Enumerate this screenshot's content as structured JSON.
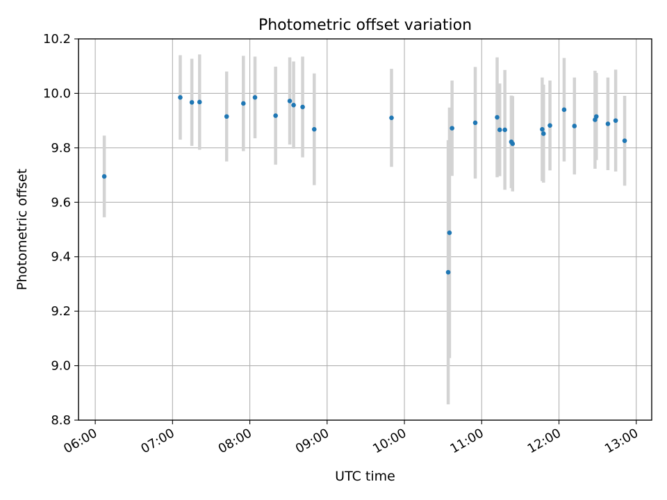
{
  "chart_data": {
    "type": "scatter",
    "title": "Photometric offset variation",
    "xlabel": "UTC time",
    "ylabel": "Photometric offset",
    "x_ticks": [
      "06:00",
      "07:00",
      "08:00",
      "09:00",
      "10:00",
      "11:00",
      "12:00",
      "13:00"
    ],
    "y_ticks": [
      "8.8",
      "9.0",
      "9.2",
      "9.4",
      "9.6",
      "9.8",
      "10.0",
      "10.2"
    ],
    "xlim": [
      "05:47",
      "13:12"
    ],
    "ylim": [
      8.8,
      10.2
    ],
    "grid": true,
    "marker_color": "#1f77b4",
    "errorbar_color": "#d3d3d3",
    "series": [
      {
        "points": [
          {
            "x": "06:07",
            "y": 9.695,
            "yerr": 0.15
          },
          {
            "x": "07:06",
            "y": 9.985,
            "yerr": 0.155
          },
          {
            "x": "07:15",
            "y": 9.967,
            "yerr": 0.16
          },
          {
            "x": "07:21",
            "y": 9.968,
            "yerr": 0.175
          },
          {
            "x": "07:42",
            "y": 9.915,
            "yerr": 0.165
          },
          {
            "x": "07:55",
            "y": 9.963,
            "yerr": 0.175
          },
          {
            "x": "08:04",
            "y": 9.985,
            "yerr": 0.15
          },
          {
            "x": "08:20",
            "y": 9.918,
            "yerr": 0.18
          },
          {
            "x": "08:31",
            "y": 9.972,
            "yerr": 0.16
          },
          {
            "x": "08:34",
            "y": 9.957,
            "yerr": 0.16
          },
          {
            "x": "08:41",
            "y": 9.95,
            "yerr": 0.185
          },
          {
            "x": "08:50",
            "y": 9.868,
            "yerr": 0.205
          },
          {
            "x": "09:50",
            "y": 9.91,
            "yerr": 0.18
          },
          {
            "x": "10:34",
            "y": 9.343,
            "yerr": 0.485
          },
          {
            "x": "10:35",
            "y": 9.488,
            "yerr": 0.46
          },
          {
            "x": "10:37",
            "y": 9.872,
            "yerr": 0.175
          },
          {
            "x": "10:55",
            "y": 9.892,
            "yerr": 0.205
          },
          {
            "x": "11:12",
            "y": 9.912,
            "yerr": 0.22
          },
          {
            "x": "11:14",
            "y": 9.866,
            "yerr": 0.17
          },
          {
            "x": "11:18",
            "y": 9.866,
            "yerr": 0.22
          },
          {
            "x": "11:23",
            "y": 9.822,
            "yerr": 0.17
          },
          {
            "x": "11:24",
            "y": 9.815,
            "yerr": 0.175
          },
          {
            "x": "11:47",
            "y": 9.868,
            "yerr": 0.19
          },
          {
            "x": "11:48",
            "y": 9.852,
            "yerr": 0.18
          },
          {
            "x": "11:53",
            "y": 9.882,
            "yerr": 0.165
          },
          {
            "x": "12:04",
            "y": 9.94,
            "yerr": 0.19
          },
          {
            "x": "12:12",
            "y": 9.88,
            "yerr": 0.178
          },
          {
            "x": "12:28",
            "y": 9.903,
            "yerr": 0.18
          },
          {
            "x": "12:29",
            "y": 9.915,
            "yerr": 0.16
          },
          {
            "x": "12:38",
            "y": 9.888,
            "yerr": 0.17
          },
          {
            "x": "12:44",
            "y": 9.9,
            "yerr": 0.187
          },
          {
            "x": "12:51",
            "y": 9.826,
            "yerr": 0.165
          }
        ]
      }
    ]
  }
}
